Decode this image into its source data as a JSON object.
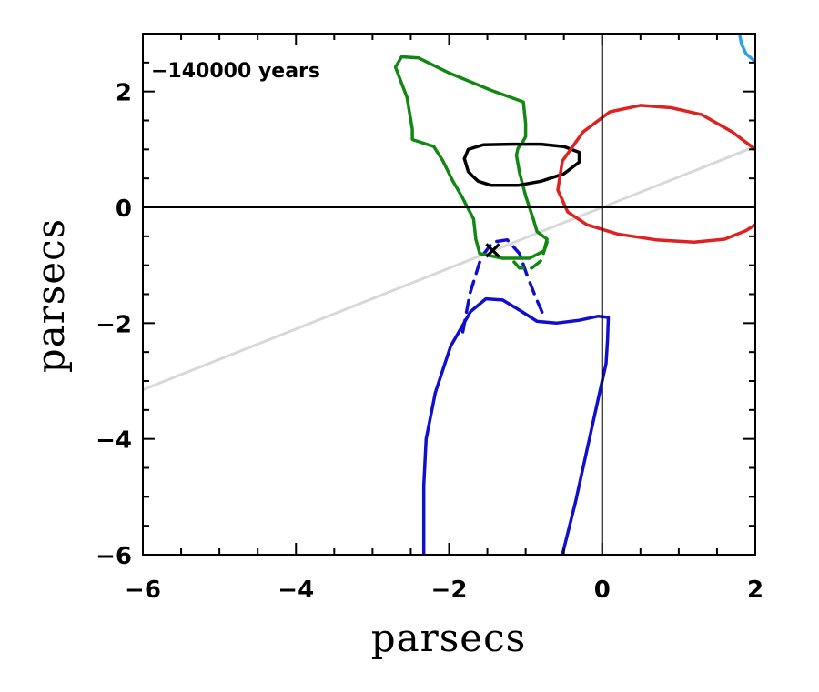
{
  "chart_data": {
    "type": "line",
    "xlabel": "parsecs",
    "ylabel": "parsecs",
    "xlim": [
      -6,
      2
    ],
    "ylim": [
      -6,
      3
    ],
    "x_ticks": [
      -6,
      -4,
      -2,
      0,
      2
    ],
    "y_ticks": [
      -6,
      -4,
      -2,
      0,
      2
    ],
    "x_tick_labels": [
      "−6",
      "−4",
      "−2",
      "0",
      "2"
    ],
    "y_tick_labels": [
      "−6",
      "−4",
      "−2",
      "0",
      "2"
    ],
    "grid": false,
    "annotation": "−140000 years",
    "marker": {
      "x": -1.43,
      "y": -0.74,
      "symbol": "×"
    },
    "series": [
      {
        "color": "#1010cc",
        "dash": false,
        "points": [
          [
            -2.33,
            -6.0
          ],
          [
            -2.33,
            -4.8
          ],
          [
            -2.3,
            -4.0
          ],
          [
            -2.18,
            -3.2
          ],
          [
            -1.98,
            -2.4
          ],
          [
            -1.72,
            -1.8
          ],
          [
            -1.52,
            -1.58
          ],
          [
            -1.3,
            -1.6
          ],
          [
            -1.05,
            -1.8
          ],
          [
            -0.85,
            -1.97
          ],
          [
            -0.6,
            -2.0
          ],
          [
            -0.3,
            -1.95
          ],
          [
            -0.05,
            -1.88
          ],
          [
            0.08,
            -1.9
          ],
          [
            0.07,
            -2.3
          ],
          [
            0.05,
            -2.7
          ],
          [
            -0.05,
            -3.3
          ],
          [
            -0.2,
            -4.2
          ],
          [
            -0.35,
            -5.1
          ],
          [
            -0.52,
            -6.0
          ]
        ]
      },
      {
        "color": "#1010cc",
        "dash": true,
        "points": [
          [
            -1.82,
            -2.15
          ],
          [
            -1.73,
            -1.5
          ],
          [
            -1.58,
            -0.86
          ],
          [
            -1.43,
            -0.6
          ],
          [
            -1.24,
            -0.56
          ],
          [
            -1.08,
            -0.8
          ],
          [
            -0.98,
            -1.18
          ],
          [
            -0.87,
            -1.55
          ],
          [
            -0.75,
            -1.92
          ]
        ]
      },
      {
        "color": "#2ea0e8",
        "dash": false,
        "points": [
          [
            1.8,
            2.95
          ],
          [
            1.82,
            2.82
          ],
          [
            1.88,
            2.65
          ],
          [
            1.97,
            2.55
          ],
          [
            2.0,
            2.52
          ]
        ]
      },
      {
        "color": "#118811",
        "dash": false,
        "points": [
          [
            -1.83,
            0.18
          ],
          [
            -1.95,
            0.45
          ],
          [
            -2.08,
            0.8
          ],
          [
            -2.2,
            1.05
          ],
          [
            -2.48,
            1.17
          ],
          [
            -2.48,
            1.35
          ],
          [
            -2.55,
            1.9
          ],
          [
            -2.7,
            2.42
          ],
          [
            -2.62,
            2.6
          ],
          [
            -2.4,
            2.58
          ],
          [
            -2.0,
            2.32
          ],
          [
            -1.45,
            2.02
          ],
          [
            -1.03,
            1.82
          ],
          [
            -1.0,
            1.45
          ],
          [
            -1.0,
            1.22
          ],
          [
            -1.05,
            1.1
          ],
          [
            -1.1,
            1.02
          ],
          [
            -1.12,
            0.9
          ],
          [
            -1.08,
            0.6
          ],
          [
            -1.0,
            0.2
          ],
          [
            -0.9,
            -0.2
          ],
          [
            -0.85,
            -0.42
          ],
          [
            -0.72,
            -0.55
          ],
          [
            -0.76,
            -0.75
          ],
          [
            -0.95,
            -0.88
          ],
          [
            -1.3,
            -0.88
          ],
          [
            -1.6,
            -0.8
          ],
          [
            -1.65,
            -0.55
          ],
          [
            -1.68,
            -0.2
          ],
          [
            -1.78,
            0.05
          ],
          [
            -1.83,
            0.18
          ]
        ]
      },
      {
        "color": "#118811",
        "dash": true,
        "points": [
          [
            -0.72,
            -0.6
          ],
          [
            -0.8,
            -0.92
          ],
          [
            -0.92,
            -1.05
          ],
          [
            -1.08,
            -1.05
          ],
          [
            -1.18,
            -0.9
          ]
        ]
      },
      {
        "color": "#000000",
        "dash": false,
        "points": [
          [
            -1.8,
            0.84
          ],
          [
            -1.75,
            1.0
          ],
          [
            -1.55,
            1.08
          ],
          [
            -1.2,
            1.09
          ],
          [
            -0.8,
            1.09
          ],
          [
            -0.5,
            1.05
          ],
          [
            -0.3,
            0.95
          ],
          [
            -0.3,
            0.78
          ],
          [
            -0.5,
            0.58
          ],
          [
            -0.8,
            0.45
          ],
          [
            -1.1,
            0.38
          ],
          [
            -1.45,
            0.38
          ],
          [
            -1.62,
            0.45
          ],
          [
            -1.7,
            0.55
          ],
          [
            -1.75,
            0.62
          ],
          [
            -1.8,
            0.84
          ]
        ]
      },
      {
        "color": "#dd2222",
        "dash": false,
        "points": [
          [
            2.0,
            1.0
          ],
          [
            1.7,
            1.3
          ],
          [
            1.3,
            1.6
          ],
          [
            0.9,
            1.72
          ],
          [
            0.5,
            1.76
          ],
          [
            0.1,
            1.65
          ],
          [
            -0.25,
            1.3
          ],
          [
            -0.52,
            0.8
          ],
          [
            -0.58,
            0.3
          ],
          [
            -0.45,
            -0.08
          ],
          [
            -0.2,
            -0.3
          ],
          [
            0.2,
            -0.46
          ],
          [
            0.7,
            -0.56
          ],
          [
            1.2,
            -0.6
          ],
          [
            1.6,
            -0.55
          ],
          [
            1.88,
            -0.4
          ],
          [
            2.0,
            -0.3
          ]
        ]
      },
      {
        "color": "#d8d8d8",
        "dash": false,
        "points": [
          [
            -6.0,
            -3.15
          ],
          [
            2.0,
            1.05
          ]
        ]
      }
    ]
  }
}
